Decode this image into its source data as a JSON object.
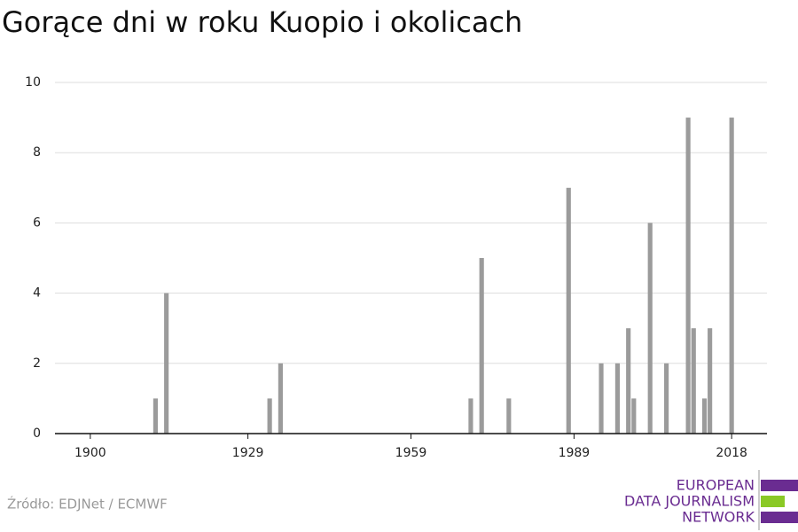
{
  "chart_data": {
    "type": "bar",
    "title": "Gorące dni w roku Kuopio i okolicach",
    "x": [
      1912,
      1914,
      1933,
      1935,
      1970,
      1972,
      1977,
      1988,
      1994,
      1997,
      1999,
      2000,
      2003,
      2006,
      2010,
      2011,
      2013,
      2014,
      2018
    ],
    "values": [
      1,
      4,
      1,
      2,
      1,
      5,
      1,
      7,
      2,
      2,
      3,
      1,
      6,
      2,
      9,
      3,
      1,
      3,
      9
    ],
    "color": "#9b9b9b",
    "xlim": [
      1893.5,
      2024.5
    ],
    "xticks": [
      1900,
      1929,
      1959,
      1989,
      2018
    ],
    "ylim": [
      0,
      10
    ],
    "yticks": [
      0,
      2,
      4,
      6,
      8,
      10
    ],
    "grid": true,
    "source": "Źródło: EDJNet / ECMWF",
    "logo": [
      "EUROPEAN",
      "DATA JOURNALISM",
      "NETWORK"
    ]
  }
}
